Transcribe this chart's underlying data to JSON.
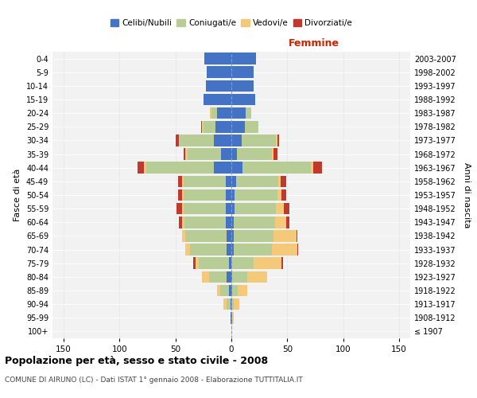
{
  "age_groups": [
    "100+",
    "95-99",
    "90-94",
    "85-89",
    "80-84",
    "75-79",
    "70-74",
    "65-69",
    "60-64",
    "55-59",
    "50-54",
    "45-49",
    "40-44",
    "35-39",
    "30-34",
    "25-29",
    "20-24",
    "15-19",
    "10-14",
    "5-9",
    "0-4"
  ],
  "birth_years": [
    "≤ 1907",
    "1908-1912",
    "1913-1917",
    "1918-1922",
    "1923-1927",
    "1928-1932",
    "1933-1937",
    "1938-1942",
    "1943-1947",
    "1948-1952",
    "1953-1957",
    "1958-1962",
    "1963-1967",
    "1968-1972",
    "1973-1977",
    "1978-1982",
    "1983-1987",
    "1988-1992",
    "1993-1997",
    "1998-2002",
    "2003-2007"
  ],
  "male": {
    "celibi": [
      0,
      1,
      1,
      2,
      4,
      2,
      4,
      4,
      5,
      5,
      5,
      5,
      16,
      9,
      16,
      14,
      13,
      25,
      23,
      22,
      24
    ],
    "coniugati": [
      0,
      0,
      3,
      8,
      16,
      27,
      33,
      37,
      37,
      38,
      38,
      38,
      60,
      30,
      30,
      11,
      5,
      0,
      0,
      0,
      0
    ],
    "vedovi": [
      0,
      0,
      3,
      3,
      6,
      3,
      4,
      3,
      2,
      1,
      1,
      1,
      2,
      2,
      1,
      1,
      1,
      0,
      0,
      0,
      0
    ],
    "divorziati": [
      0,
      0,
      0,
      0,
      0,
      2,
      0,
      0,
      3,
      5,
      4,
      4,
      6,
      2,
      3,
      1,
      0,
      0,
      0,
      0,
      0
    ]
  },
  "female": {
    "nubili": [
      0,
      1,
      0,
      1,
      1,
      0,
      2,
      2,
      2,
      3,
      3,
      4,
      10,
      5,
      9,
      12,
      13,
      21,
      20,
      20,
      22
    ],
    "coniugate": [
      0,
      0,
      2,
      5,
      13,
      20,
      34,
      36,
      37,
      37,
      38,
      38,
      61,
      31,
      31,
      12,
      5,
      0,
      0,
      0,
      0
    ],
    "vedove": [
      0,
      1,
      5,
      8,
      18,
      25,
      23,
      20,
      10,
      7,
      4,
      2,
      2,
      2,
      1,
      0,
      0,
      0,
      0,
      0,
      0
    ],
    "divorziate": [
      0,
      0,
      0,
      0,
      0,
      1,
      1,
      1,
      3,
      5,
      4,
      5,
      8,
      3,
      2,
      0,
      0,
      0,
      0,
      0,
      0
    ]
  },
  "colors": {
    "celibi": "#4472C4",
    "coniugati": "#B8CC96",
    "vedovi": "#F5C97A",
    "divorziati": "#C0392B"
  },
  "xlim": 160,
  "title_main": "Popolazione per età, sesso e stato civile - 2008",
  "title_sub": "COMUNE DI AIRUNO (LC) - Dati ISTAT 1° gennaio 2008 - Elaborazione TUTTITALIA.IT",
  "ylabel_left": "Fasce di età",
  "ylabel_right": "Anni di nascita",
  "xlabel_right": "Femmine",
  "legend_labels": [
    "Celibi/Nubili",
    "Coniugati/e",
    "Vedovi/e",
    "Divorziati/e"
  ],
  "bg_color": "#FFFFFF",
  "plot_bg_color": "#F2F2F2"
}
